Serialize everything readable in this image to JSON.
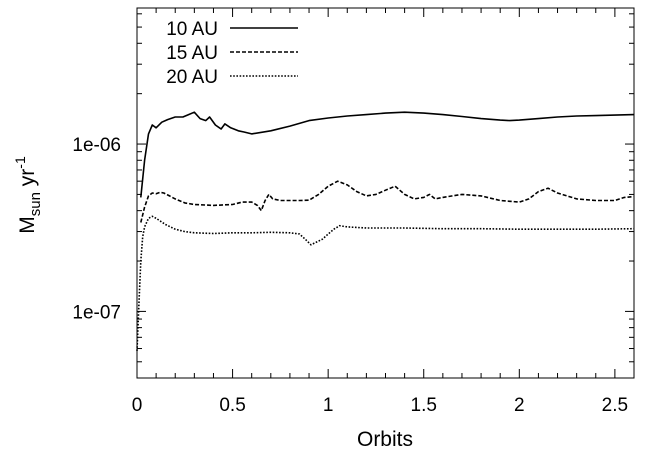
{
  "chart_data": {
    "type": "line",
    "xlabel": "Orbits",
    "ylabel": {
      "base": "M",
      "sub": "sun",
      "unit": " yr",
      "sup": "-1"
    },
    "xlim": [
      0,
      2.6
    ],
    "ylim": [
      4e-08,
      6.5e-06
    ],
    "y_scale": "log",
    "grid": false,
    "legend_position": "top-left",
    "x_ticks": [
      {
        "value": 0,
        "label": "0"
      },
      {
        "value": 0.5,
        "label": "0.5"
      },
      {
        "value": 1,
        "label": "1"
      },
      {
        "value": 1.5,
        "label": "1.5"
      },
      {
        "value": 2,
        "label": "2"
      },
      {
        "value": 2.5,
        "label": "2.5"
      }
    ],
    "y_ticks": [
      {
        "value": 1e-07,
        "label": "1e-07"
      },
      {
        "value": 1e-06,
        "label": "1e-06"
      }
    ],
    "series": [
      {
        "name": "10 AU",
        "style": "solid",
        "points": [
          [
            0.02,
            4.8e-07
          ],
          [
            0.04,
            8e-07
          ],
          [
            0.06,
            1.15e-06
          ],
          [
            0.08,
            1.3e-06
          ],
          [
            0.1,
            1.25e-06
          ],
          [
            0.13,
            1.35e-06
          ],
          [
            0.16,
            1.4e-06
          ],
          [
            0.2,
            1.45e-06
          ],
          [
            0.24,
            1.45e-06
          ],
          [
            0.27,
            1.5e-06
          ],
          [
            0.3,
            1.55e-06
          ],
          [
            0.33,
            1.42e-06
          ],
          [
            0.36,
            1.38e-06
          ],
          [
            0.38,
            1.45e-06
          ],
          [
            0.41,
            1.3e-06
          ],
          [
            0.44,
            1.23e-06
          ],
          [
            0.46,
            1.32e-06
          ],
          [
            0.49,
            1.25e-06
          ],
          [
            0.53,
            1.2e-06
          ],
          [
            0.56,
            1.18e-06
          ],
          [
            0.6,
            1.15e-06
          ],
          [
            0.7,
            1.2e-06
          ],
          [
            0.8,
            1.28e-06
          ],
          [
            0.9,
            1.38e-06
          ],
          [
            1.0,
            1.43e-06
          ],
          [
            1.1,
            1.47e-06
          ],
          [
            1.2,
            1.5e-06
          ],
          [
            1.3,
            1.53e-06
          ],
          [
            1.4,
            1.55e-06
          ],
          [
            1.5,
            1.53e-06
          ],
          [
            1.6,
            1.5e-06
          ],
          [
            1.7,
            1.46e-06
          ],
          [
            1.8,
            1.42e-06
          ],
          [
            1.9,
            1.39e-06
          ],
          [
            1.95,
            1.38e-06
          ],
          [
            2.0,
            1.39e-06
          ],
          [
            2.1,
            1.42e-06
          ],
          [
            2.2,
            1.45e-06
          ],
          [
            2.3,
            1.47e-06
          ],
          [
            2.4,
            1.48e-06
          ],
          [
            2.5,
            1.49e-06
          ],
          [
            2.6,
            1.5e-06
          ]
        ]
      },
      {
        "name": "15 AU",
        "style": "dashed",
        "points": [
          [
            0.02,
            3.4e-07
          ],
          [
            0.04,
            4.2e-07
          ],
          [
            0.06,
            4.9e-07
          ],
          [
            0.08,
            5.1e-07
          ],
          [
            0.1,
            5.05e-07
          ],
          [
            0.12,
            5.15e-07
          ],
          [
            0.14,
            5.1e-07
          ],
          [
            0.17,
            4.9e-07
          ],
          [
            0.2,
            4.7e-07
          ],
          [
            0.25,
            4.45e-07
          ],
          [
            0.3,
            4.35e-07
          ],
          [
            0.4,
            4.3e-07
          ],
          [
            0.5,
            4.35e-07
          ],
          [
            0.55,
            4.5e-07
          ],
          [
            0.6,
            4.5e-07
          ],
          [
            0.63,
            4.3e-07
          ],
          [
            0.65,
            4e-07
          ],
          [
            0.67,
            4.6e-07
          ],
          [
            0.69,
            5e-07
          ],
          [
            0.71,
            4.7e-07
          ],
          [
            0.75,
            4.6e-07
          ],
          [
            0.8,
            4.6e-07
          ],
          [
            0.85,
            4.6e-07
          ],
          [
            0.9,
            4.62e-07
          ],
          [
            0.95,
            5e-07
          ],
          [
            1.0,
            5.6e-07
          ],
          [
            1.05,
            6e-07
          ],
          [
            1.1,
            5.7e-07
          ],
          [
            1.15,
            5.2e-07
          ],
          [
            1.2,
            4.9e-07
          ],
          [
            1.25,
            5e-07
          ],
          [
            1.3,
            5.3e-07
          ],
          [
            1.35,
            5.6e-07
          ],
          [
            1.4,
            5e-07
          ],
          [
            1.45,
            4.7e-07
          ],
          [
            1.5,
            4.8e-07
          ],
          [
            1.53,
            5e-07
          ],
          [
            1.56,
            4.7e-07
          ],
          [
            1.6,
            4.8e-07
          ],
          [
            1.7,
            5e-07
          ],
          [
            1.8,
            4.9e-07
          ],
          [
            1.9,
            4.6e-07
          ],
          [
            2.0,
            4.5e-07
          ],
          [
            2.05,
            4.7e-07
          ],
          [
            2.1,
            5.2e-07
          ],
          [
            2.15,
            5.45e-07
          ],
          [
            2.2,
            5.1e-07
          ],
          [
            2.3,
            4.7e-07
          ],
          [
            2.4,
            4.6e-07
          ],
          [
            2.5,
            4.6e-07
          ],
          [
            2.55,
            4.8e-07
          ],
          [
            2.6,
            4.85e-07
          ]
        ]
      },
      {
        "name": "20 AU",
        "style": "dotted",
        "points": [
          [
            0.0,
            5.8e-08
          ],
          [
            0.01,
            1.1e-07
          ],
          [
            0.02,
            2e-07
          ],
          [
            0.03,
            2.8e-07
          ],
          [
            0.04,
            3.2e-07
          ],
          [
            0.06,
            3.6e-07
          ],
          [
            0.08,
            3.7e-07
          ],
          [
            0.1,
            3.6e-07
          ],
          [
            0.15,
            3.3e-07
          ],
          [
            0.2,
            3.1e-07
          ],
          [
            0.25,
            3e-07
          ],
          [
            0.3,
            2.95e-07
          ],
          [
            0.4,
            2.92e-07
          ],
          [
            0.5,
            2.95e-07
          ],
          [
            0.6,
            2.95e-07
          ],
          [
            0.7,
            2.97e-07
          ],
          [
            0.8,
            2.95e-07
          ],
          [
            0.85,
            2.9e-07
          ],
          [
            0.88,
            2.7e-07
          ],
          [
            0.91,
            2.5e-07
          ],
          [
            0.94,
            2.6e-07
          ],
          [
            0.97,
            2.7e-07
          ],
          [
            1.0,
            2.9e-07
          ],
          [
            1.03,
            3.1e-07
          ],
          [
            1.06,
            3.25e-07
          ],
          [
            1.1,
            3.2e-07
          ],
          [
            1.2,
            3.15e-07
          ],
          [
            1.4,
            3.15e-07
          ],
          [
            1.6,
            3.12e-07
          ],
          [
            1.8,
            3.12e-07
          ],
          [
            2.0,
            3.1e-07
          ],
          [
            2.2,
            3.1e-07
          ],
          [
            2.4,
            3.1e-07
          ],
          [
            2.6,
            3.12e-07
          ]
        ]
      }
    ]
  }
}
